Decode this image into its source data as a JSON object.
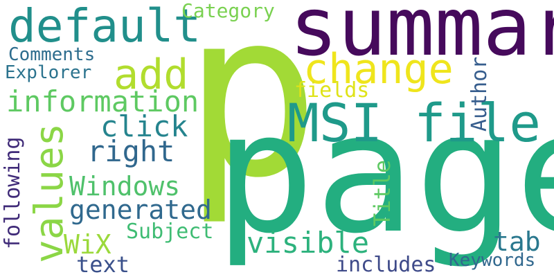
{
  "words": {
    "p": {
      "text": "p",
      "color": "#a2da36"
    },
    "page": {
      "text": "page",
      "color": "#23ae80"
    },
    "summary": {
      "text": "summary",
      "color": "#460a5c"
    },
    "default": {
      "text": "default",
      "color": "#218f8b"
    },
    "category": {
      "text": "Category",
      "color": "#7ad151"
    },
    "change": {
      "text": "change",
      "color": "#efe51c"
    },
    "add": {
      "text": "add",
      "color": "#b1dd2e"
    },
    "comments": {
      "text": "Comments",
      "color": "#2e6d8e"
    },
    "explorer": {
      "text": "Explorer",
      "color": "#2b738e"
    },
    "information": {
      "text": "information",
      "color": "#5ec962"
    },
    "fields": {
      "text": "fields",
      "color": "#dfe318"
    },
    "msi_file": {
      "text": "MSI file",
      "color": "#1f9a8a"
    },
    "click": {
      "text": "click",
      "color": "#25848e"
    },
    "right": {
      "text": "right",
      "color": "#30678d"
    },
    "values": {
      "text": "values",
      "color": "#8bd646"
    },
    "following": {
      "text": "following",
      "color": "#3f2a78"
    },
    "windows": {
      "text": "Windows",
      "color": "#4fc16b"
    },
    "generated": {
      "text": "generated",
      "color": "#30698e"
    },
    "wix": {
      "text": "WiX",
      "color": "#9bd93c"
    },
    "subject": {
      "text": "Subject",
      "color": "#3fbc73"
    },
    "visible": {
      "text": "visible",
      "color": "#2db27d"
    },
    "title": {
      "text": "Title",
      "color": "#5ec962"
    },
    "author": {
      "text": "Author",
      "color": "#365d8d"
    },
    "tab": {
      "text": "tab",
      "color": "#2a788e"
    },
    "text": {
      "text": "text",
      "color": "#3b518b"
    },
    "includes": {
      "text": "includes",
      "color": "#3e4a89"
    },
    "keywords": {
      "text": "Keywords",
      "color": "#31688e"
    }
  }
}
